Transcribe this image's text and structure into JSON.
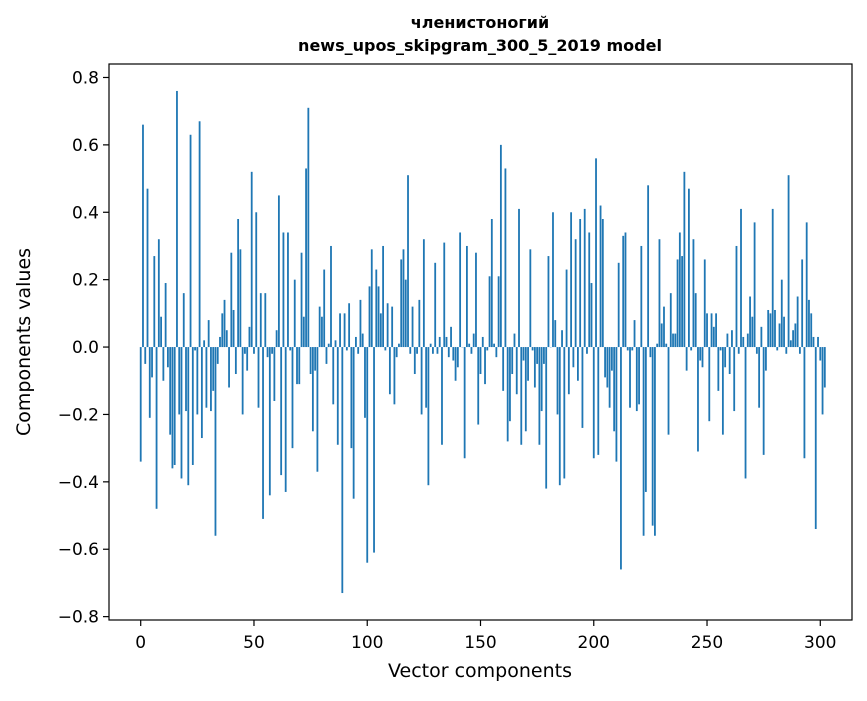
{
  "chart_data": {
    "type": "bar",
    "title": "членистоногий",
    "subtitle": "news_upos_skipgram_300_5_2019 model",
    "xlabel": "Vector components",
    "ylabel": "Components values",
    "xlim": [
      -14,
      314
    ],
    "ylim": [
      -0.81,
      0.84
    ],
    "xticks": [
      0,
      50,
      100,
      150,
      200,
      250,
      300
    ],
    "xtick_labels": [
      "0",
      "50",
      "100",
      "150",
      "200",
      "250",
      "300"
    ],
    "yticks": [
      -0.8,
      -0.6,
      -0.4,
      -0.2,
      0.0,
      0.2,
      0.4,
      0.6,
      0.8
    ],
    "ytick_labels": [
      "−0.8",
      "−0.6",
      "−0.4",
      "−0.2",
      "0.0",
      "0.2",
      "0.4",
      "0.6",
      "0.8"
    ],
    "bar_color": "#1f77b4",
    "grid": false,
    "x_start": 0,
    "values": [
      -0.34,
      0.66,
      -0.05,
      0.47,
      -0.21,
      -0.09,
      0.27,
      -0.48,
      0.32,
      0.09,
      -0.1,
      0.19,
      -0.06,
      -0.26,
      -0.36,
      -0.35,
      0.76,
      -0.2,
      -0.39,
      0.16,
      -0.19,
      -0.41,
      0.63,
      -0.35,
      -0.01,
      -0.2,
      0.67,
      -0.27,
      0.02,
      -0.18,
      0.08,
      -0.19,
      -0.13,
      -0.56,
      -0.05,
      0.03,
      0.1,
      0.14,
      0.05,
      -0.12,
      0.28,
      0.11,
      -0.08,
      0.38,
      0.29,
      -0.2,
      -0.02,
      -0.07,
      0.06,
      0.52,
      -0.02,
      0.4,
      -0.18,
      0.16,
      -0.51,
      0.16,
      -0.03,
      -0.44,
      -0.02,
      -0.16,
      0.05,
      0.45,
      -0.38,
      0.34,
      -0.43,
      0.34,
      -0.01,
      -0.3,
      0.2,
      -0.11,
      -0.11,
      0.28,
      0.09,
      0.53,
      0.71,
      -0.08,
      -0.25,
      -0.07,
      -0.37,
      0.12,
      0.09,
      0.23,
      -0.05,
      0.01,
      0.3,
      -0.17,
      0.02,
      -0.29,
      0.1,
      -0.73,
      0.1,
      -0.01,
      0.13,
      -0.3,
      -0.45,
      0.03,
      -0.02,
      0.14,
      0.04,
      -0.21,
      -0.64,
      0.18,
      0.29,
      -0.61,
      0.23,
      0.18,
      0.1,
      0.3,
      -0.01,
      0.13,
      -0.14,
      0.12,
      -0.17,
      -0.03,
      0.01,
      0.26,
      0.29,
      0.2,
      0.51,
      -0.02,
      0.12,
      -0.08,
      -0.02,
      0.14,
      -0.2,
      0.32,
      -0.18,
      -0.41,
      0.01,
      -0.02,
      0.25,
      -0.02,
      0.03,
      -0.29,
      0.31,
      0.03,
      -0.03,
      0.06,
      -0.04,
      -0.1,
      -0.06,
      0.34,
      0.0,
      -0.33,
      0.3,
      0.01,
      -0.02,
      0.04,
      0.28,
      -0.23,
      -0.08,
      0.03,
      -0.11,
      -0.01,
      0.21,
      0.38,
      0.01,
      -0.03,
      0.21,
      0.6,
      -0.13,
      0.53,
      -0.28,
      -0.22,
      -0.08,
      0.04,
      -0.14,
      0.41,
      -0.29,
      -0.04,
      -0.25,
      -0.1,
      0.29,
      -0.01,
      -0.12,
      -0.05,
      -0.29,
      -0.19,
      -0.05,
      -0.42,
      0.27,
      0.0,
      0.4,
      0.08,
      -0.2,
      -0.41,
      0.05,
      -0.39,
      0.23,
      -0.14,
      0.4,
      -0.06,
      0.32,
      -0.1,
      0.38,
      -0.24,
      0.41,
      -0.02,
      0.34,
      0.19,
      -0.33,
      0.56,
      -0.32,
      0.42,
      0.38,
      -0.09,
      -0.12,
      -0.18,
      -0.07,
      -0.25,
      -0.34,
      0.25,
      -0.66,
      0.33,
      0.34,
      -0.01,
      -0.18,
      -0.01,
      0.08,
      -0.19,
      -0.17,
      0.3,
      -0.56,
      -0.43,
      0.48,
      -0.03,
      -0.53,
      -0.56,
      0.01,
      0.32,
      0.07,
      0.12,
      0.01,
      -0.26,
      0.16,
      0.04,
      0.04,
      0.26,
      0.34,
      0.27,
      0.52,
      -0.07,
      0.47,
      -0.01,
      0.32,
      0.16,
      -0.31,
      -0.04,
      -0.06,
      0.26,
      0.1,
      -0.22,
      0.1,
      0.06,
      0.1,
      -0.13,
      -0.01,
      -0.26,
      -0.06,
      0.04,
      -0.08,
      0.05,
      -0.19,
      0.3,
      -0.02,
      0.41,
      0.03,
      -0.39,
      0.04,
      0.15,
      0.09,
      0.37,
      -0.02,
      -0.18,
      0.06,
      -0.32,
      -0.07,
      0.11,
      0.1,
      0.41,
      0.11,
      -0.01,
      0.07,
      0.2,
      0.09,
      -0.02,
      0.51,
      0.02,
      0.05,
      0.07,
      0.15,
      -0.02,
      0.26,
      -0.33,
      0.37,
      0.14,
      0.1,
      0.03,
      -0.54,
      0.03,
      -0.04,
      -0.2,
      -0.12
    ]
  }
}
